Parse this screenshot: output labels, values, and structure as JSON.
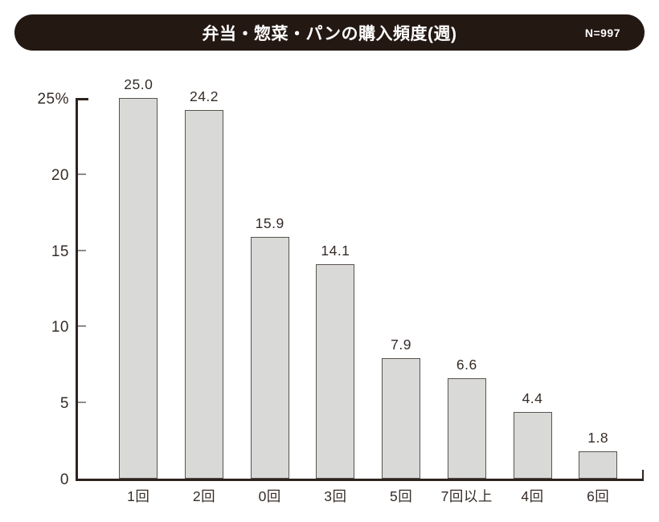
{
  "header": {
    "title": "弁当・惣菜・パンの購入頻度(週)",
    "sample_label": "N=997",
    "bg_color": "#241813",
    "text_color": "#ffffff"
  },
  "chart_data": {
    "type": "bar",
    "title": "弁当・惣菜・パンの購入頻度(週)",
    "sample_size_label": "N=997",
    "categories": [
      "1回",
      "2回",
      "0回",
      "3回",
      "5回",
      "7回以上",
      "4回",
      "6回"
    ],
    "values": [
      25.0,
      24.2,
      15.9,
      14.1,
      7.9,
      6.6,
      4.4,
      1.8
    ],
    "value_labels": [
      "25.0",
      "24.2",
      "15.9",
      "14.1",
      "7.9",
      "6.6",
      "4.4",
      "1.8"
    ],
    "xlabel": "",
    "ylabel": "%",
    "ylim": [
      0,
      25
    ],
    "yticks": [
      {
        "value": 0,
        "label": "0"
      },
      {
        "value": 5,
        "label": "5"
      },
      {
        "value": 10,
        "label": "10"
      },
      {
        "value": 15,
        "label": "15"
      },
      {
        "value": 20,
        "label": "20"
      },
      {
        "value": 25,
        "label": "25%"
      }
    ],
    "grid": false,
    "legend": "none",
    "bar_fill": "#d9d9d7",
    "bar_border": "#59534e",
    "axis_color": "#2d231e",
    "minor_tick_color": "#8f8c89",
    "label_color": "#352c27"
  }
}
